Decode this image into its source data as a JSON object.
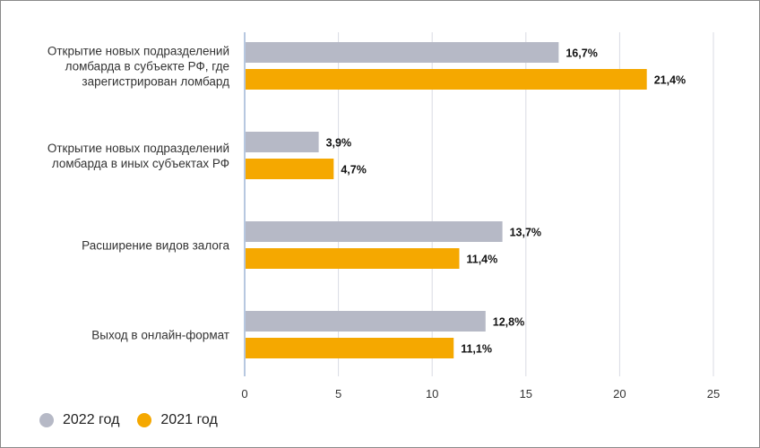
{
  "chart_data": {
    "type": "bar",
    "orientation": "horizontal",
    "categories": [
      [
        "Открытие новых подразделений",
        "ломбарда в субъекте РФ, где",
        "зарегистрирован ломбард"
      ],
      [
        "Открытие новых подразделений",
        "ломбарда в иных субъектах РФ"
      ],
      [
        "Расширение видов залога"
      ],
      [
        "Выход в онлайн-формат"
      ]
    ],
    "series": [
      {
        "name": "2022 год",
        "color": "#b6b9c6",
        "values": [
          16.7,
          3.9,
          13.7,
          12.8
        ],
        "labels": [
          "16,7%",
          "3,9%",
          "13,7%",
          "12,8%"
        ]
      },
      {
        "name": "2021 год",
        "color": "#f5a800",
        "values": [
          21.4,
          4.7,
          11.4,
          11.1
        ],
        "labels": [
          "21,4%",
          "4,7%",
          "11,4%",
          "11,1%"
        ]
      }
    ],
    "xlim": [
      0,
      25
    ],
    "xticks": [
      0,
      5,
      10,
      15,
      20,
      25
    ],
    "xticklabels": [
      "0",
      "5",
      "10",
      "15",
      "20",
      "25"
    ],
    "grid": true,
    "legend_position": "bottom-left"
  }
}
